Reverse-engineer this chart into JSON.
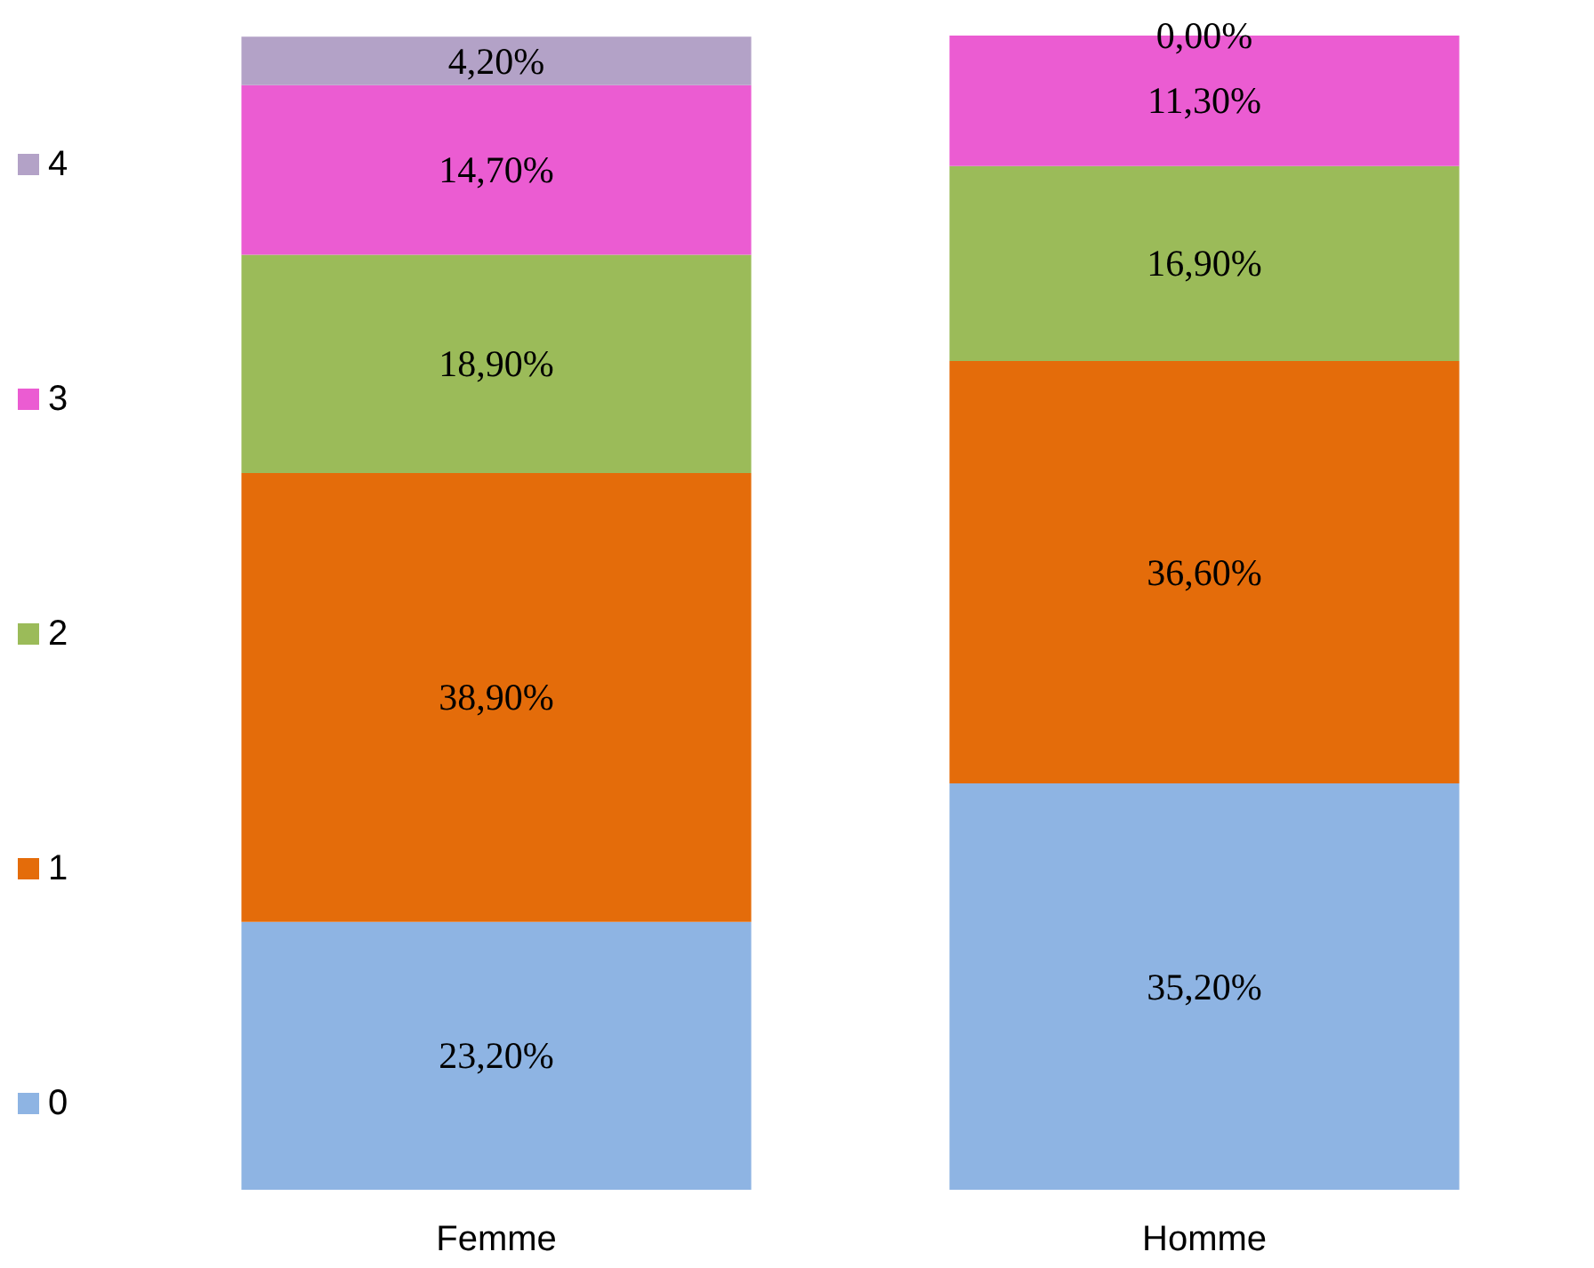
{
  "chart_data": {
    "type": "bar",
    "stacked": true,
    "categories": [
      "Femme",
      "Homme"
    ],
    "legend": "left",
    "grid": false,
    "series": [
      {
        "name": "0",
        "color": "#8eb4e3",
        "values": [
          23.2,
          35.2
        ],
        "value_labels": [
          "23,20%",
          "35,20%"
        ]
      },
      {
        "name": "1",
        "color": "#e46c0a",
        "values": [
          38.9,
          36.6
        ],
        "value_labels": [
          "38,90%",
          "36,60%"
        ]
      },
      {
        "name": "2",
        "color": "#9bbb59",
        "values": [
          18.9,
          16.9
        ],
        "value_labels": [
          "18,90%",
          "16,90%"
        ]
      },
      {
        "name": "3",
        "color": "#eb5cd2",
        "values": [
          14.7,
          11.3
        ],
        "value_labels": [
          "14,70%",
          "11,30%"
        ]
      },
      {
        "name": "4",
        "color": "#b3a2c7",
        "values": [
          4.2,
          0.0
        ],
        "value_labels": [
          "4,20%",
          "0,00%"
        ]
      }
    ]
  }
}
